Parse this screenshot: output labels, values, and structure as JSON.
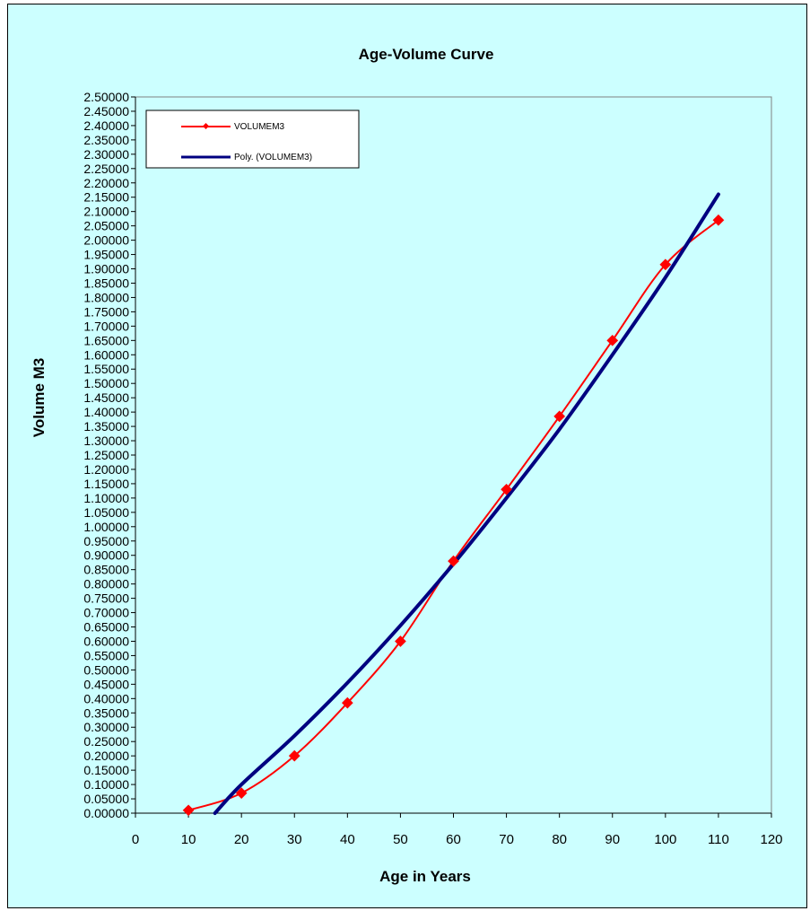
{
  "chart_data": {
    "type": "line",
    "title": "Age-Volume Curve",
    "xlabel": "Age in Years",
    "ylabel": "Volume M3",
    "xlim": [
      0,
      120
    ],
    "ylim": [
      0,
      2.5
    ],
    "x_ticks": [
      "0",
      "10",
      "20",
      "30",
      "40",
      "50",
      "60",
      "70",
      "80",
      "90",
      "100",
      "110",
      "120"
    ],
    "y_ticks": [
      "0.00000",
      "0.05000",
      "0.10000",
      "0.15000",
      "0.20000",
      "0.25000",
      "0.30000",
      "0.35000",
      "0.40000",
      "0.45000",
      "0.50000",
      "0.55000",
      "0.60000",
      "0.65000",
      "0.70000",
      "0.75000",
      "0.80000",
      "0.85000",
      "0.90000",
      "0.95000",
      "1.00000",
      "1.05000",
      "1.10000",
      "1.15000",
      "1.20000",
      "1.25000",
      "1.30000",
      "1.35000",
      "1.40000",
      "1.45000",
      "1.50000",
      "1.55000",
      "1.60000",
      "1.65000",
      "1.70000",
      "1.75000",
      "1.80000",
      "1.85000",
      "1.90000",
      "1.95000",
      "2.00000",
      "2.05000",
      "2.10000",
      "2.15000",
      "2.20000",
      "2.25000",
      "2.30000",
      "2.35000",
      "2.40000",
      "2.45000",
      "2.50000"
    ],
    "grid": false,
    "legend_position": "top-left",
    "series": [
      {
        "name": "VOLUMEM3",
        "color": "#ff0000",
        "marker": "diamond",
        "smooth": true,
        "x": [
          10,
          20,
          30,
          40,
          50,
          60,
          70,
          80,
          90,
          100,
          110
        ],
        "values": [
          0.01,
          0.07,
          0.2,
          0.385,
          0.6,
          0.88,
          1.13,
          1.385,
          1.65,
          1.915,
          2.07
        ]
      },
      {
        "name": "Poly. (VOLUMEM3)",
        "color": "#000080",
        "marker": "none",
        "trendline": "polynomial",
        "x": [
          15,
          20,
          30,
          40,
          50,
          60,
          70,
          80,
          90,
          100,
          110
        ],
        "values": [
          0.0,
          0.1,
          0.27,
          0.455,
          0.655,
          0.87,
          1.1,
          1.34,
          1.6,
          1.87,
          2.16
        ]
      }
    ]
  }
}
